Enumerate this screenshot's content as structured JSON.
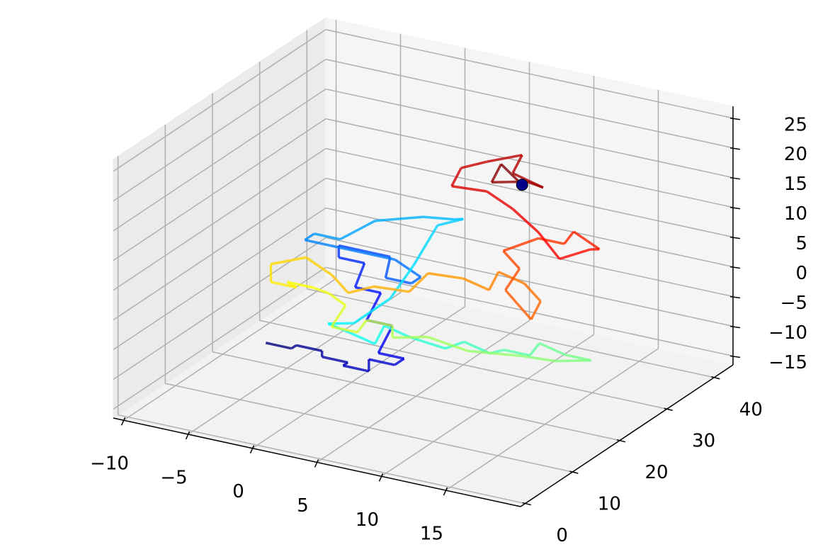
{
  "chart_data": {
    "type": "line3d",
    "colormap": "jet",
    "end_marker_color": "#00008b",
    "grid": true,
    "x": [
      -3,
      -1,
      -1,
      1,
      1,
      3,
      3,
      5,
      5,
      7,
      7,
      5,
      5,
      3,
      3,
      1,
      1,
      -1,
      -1,
      1,
      3,
      3,
      5,
      5,
      3,
      -2,
      -4,
      -4,
      -2,
      0,
      3,
      5,
      5,
      3,
      3,
      3,
      2,
      0,
      2,
      4,
      4,
      6,
      8,
      8,
      10,
      10,
      12,
      12,
      14,
      16,
      14,
      12,
      9,
      7,
      5,
      5,
      3,
      3,
      1,
      1,
      -1,
      -3,
      -5,
      -5,
      -7,
      -7,
      -5,
      -3,
      -1,
      1,
      3,
      3,
      5,
      7,
      7,
      9,
      11,
      11,
      9,
      9,
      7,
      9,
      11,
      11,
      13,
      13,
      11,
      9,
      7,
      5,
      3,
      3,
      5,
      7,
      7,
      9,
      7,
      5,
      5,
      7
    ],
    "y": [
      10,
      10,
      11,
      11,
      11,
      11,
      10,
      10,
      10,
      10,
      12,
      12,
      15,
      15,
      18,
      18,
      20,
      20,
      20,
      20,
      20,
      19,
      19,
      21,
      21,
      21,
      21,
      23,
      23,
      25,
      27,
      28,
      30,
      30,
      25,
      20,
      15,
      15,
      14,
      14,
      16,
      16,
      18,
      22,
      22,
      25,
      25,
      27,
      27,
      27,
      25,
      23,
      20,
      17,
      15,
      15,
      15,
      13,
      13,
      16,
      18,
      20,
      20,
      22,
      22,
      22,
      24,
      24,
      22,
      22,
      24,
      28,
      30,
      30,
      32,
      32,
      30,
      28,
      28,
      31,
      33,
      35,
      35,
      37,
      37,
      35,
      34,
      35,
      35,
      35,
      33,
      35,
      35,
      37,
      35,
      36,
      38,
      36,
      38,
      37
    ],
    "z": [
      -6,
      -6,
      -6,
      -6,
      -7,
      -7,
      -7,
      -7,
      -5,
      -5,
      -5,
      -5,
      -2,
      -2,
      1,
      1,
      4,
      4,
      6,
      6,
      6,
      3,
      3,
      3,
      5,
      5,
      5,
      5,
      5,
      8,
      9,
      9,
      8,
      6,
      2,
      -1,
      -3,
      -4,
      -4,
      -5,
      -3,
      -4,
      -6,
      -7,
      -8,
      -9,
      -9,
      -8,
      -9,
      -9,
      -9,
      -8,
      -7,
      -4,
      -4,
      -2,
      -2,
      -3,
      -3,
      -1,
      -1,
      -2,
      -2,
      -4,
      -4,
      -1,
      0,
      -2,
      -3,
      -1,
      -2,
      -1,
      -2,
      -3,
      -1,
      -2,
      -3,
      -5,
      -1,
      1,
      2,
      4,
      4,
      5,
      3,
      4,
      2,
      5,
      8,
      10,
      11,
      13,
      15,
      16,
      14,
      12,
      11,
      11,
      13,
      11
    ],
    "xlim": [
      -10.8,
      20.8
    ],
    "ylim": [
      -1,
      44
    ],
    "zlim": [
      -16.5,
      27
    ],
    "xticks": [
      {
        "value": -10,
        "label": "−10"
      },
      {
        "value": -5,
        "label": "−5"
      },
      0,
      5,
      10,
      15
    ],
    "yticks": [
      0,
      10,
      20,
      30,
      40
    ],
    "zticks": [
      {
        "value": -15,
        "label": "−15"
      },
      {
        "value": -10,
        "label": "−10"
      },
      {
        "value": -5,
        "label": "−5"
      },
      0,
      5,
      10,
      15,
      20,
      25
    ]
  }
}
